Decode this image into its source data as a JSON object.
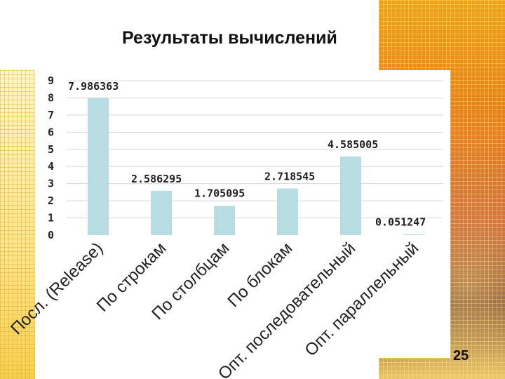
{
  "slide": {
    "title": "Результаты вычислений",
    "page_number": "25"
  },
  "colors": {
    "bar": "#b7dde3",
    "grid": "#d8d8d8",
    "accent": "#e6781a"
  },
  "chart_data": {
    "type": "bar",
    "title": "",
    "xlabel": "",
    "ylabel": "",
    "ylim": [
      0,
      9
    ],
    "yticks": [
      "0",
      "1",
      "2",
      "3",
      "4",
      "5",
      "6",
      "7",
      "8",
      "9"
    ],
    "grid": true,
    "categories": [
      "Посл. (Release)",
      "По строкам",
      "По столбцам",
      "По блокам",
      "Опт. последовательный",
      "Опт. параллельный"
    ],
    "values": [
      7.986363,
      2.586295,
      1.705095,
      2.718545,
      4.585005,
      0.051247
    ],
    "data_labels": [
      "7.986363",
      "2.586295",
      "1.705095",
      "2.718545",
      "4.585005",
      "0.051247"
    ]
  }
}
